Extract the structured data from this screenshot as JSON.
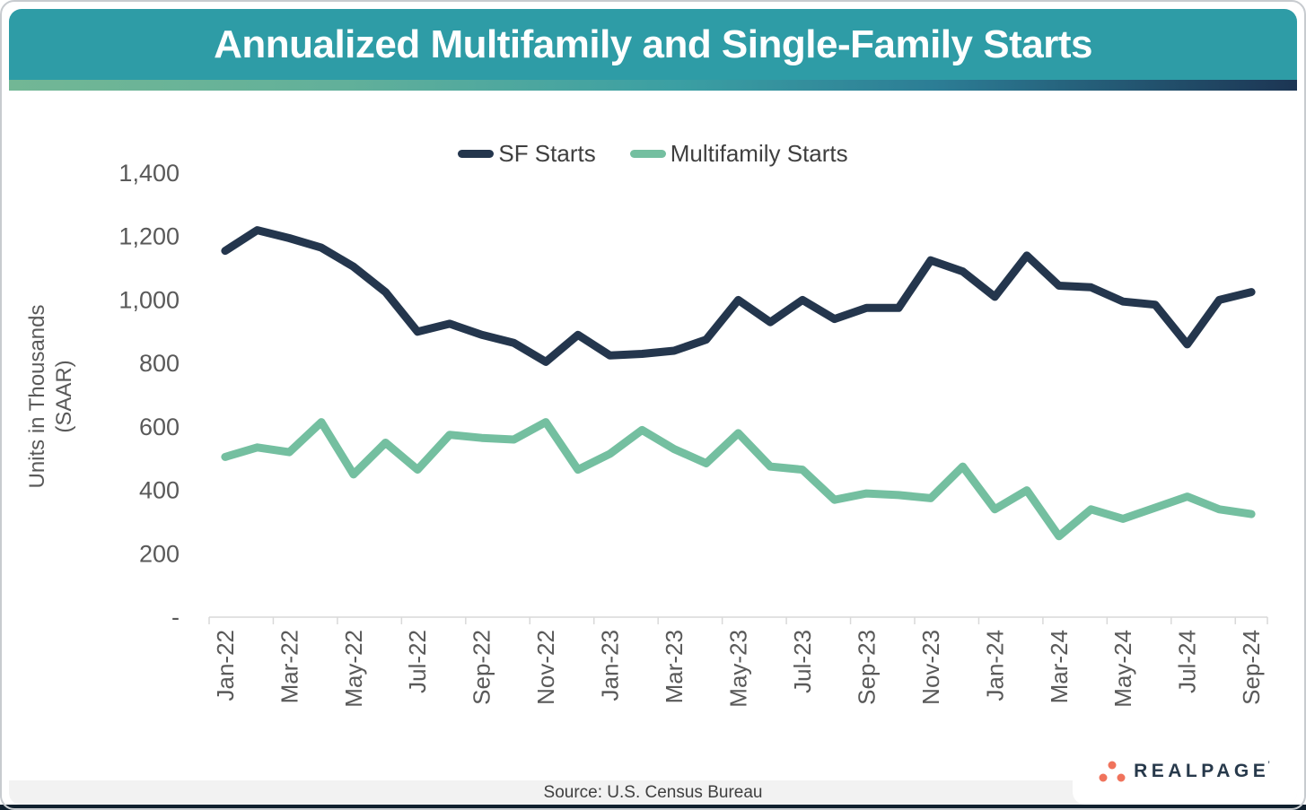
{
  "header": {
    "title": "Annualized Multifamily and Single-Family Starts"
  },
  "legend": {
    "items": [
      "SF Starts",
      "Multifamily Starts"
    ]
  },
  "footer": {
    "source": "Source: U.S. Census Bureau"
  },
  "logo": {
    "text": "REALPAGE",
    "mark": "’",
    "dots_color": "#F0735C",
    "text_color": "#27394B"
  },
  "colors": {
    "header_teal": "#2E9CA6",
    "sf_navy": "#24364D",
    "mf_green": "#74BFA0",
    "axis_line": "#D9D9D9",
    "tick_text": "#595959",
    "legend_text": "#3F3F3F",
    "source_bg": "#F2F2F2",
    "bottom_bar": "#10202E",
    "gradient_left": "#72B795",
    "gradient_mid": "#3B9FA3",
    "gradient_right": "#1C3553"
  },
  "chart_data": {
    "type": "line",
    "title": "Annualized Multifamily and Single-Family Starts",
    "ylabel_line1": "Units in Thousands",
    "ylabel_line2": "(SAAR)",
    "ylim": [
      0,
      1400
    ],
    "ytick_values": [
      1400,
      1200,
      1000,
      800,
      600,
      400,
      200,
      0
    ],
    "ytick_labels": [
      "1,400",
      "1,200",
      "1,000",
      "800",
      "600",
      "400",
      "200",
      "-"
    ],
    "grid": false,
    "legend_position": "top-center",
    "x": [
      "Jan-22",
      "Feb-22",
      "Mar-22",
      "Apr-22",
      "May-22",
      "Jun-22",
      "Jul-22",
      "Aug-22",
      "Sep-22",
      "Oct-22",
      "Nov-22",
      "Dec-22",
      "Jan-23",
      "Feb-23",
      "Mar-23",
      "Apr-23",
      "May-23",
      "Jun-23",
      "Jul-23",
      "Aug-23",
      "Sep-23",
      "Oct-23",
      "Nov-23",
      "Dec-23",
      "Jan-24",
      "Feb-24",
      "Mar-24",
      "Apr-24",
      "May-24",
      "Jun-24",
      "Jul-24",
      "Aug-24",
      "Sep-24"
    ],
    "x_ticks_shown": [
      "Jan-22",
      "Mar-22",
      "May-22",
      "Jul-22",
      "Sep-22",
      "Nov-22",
      "Jan-23",
      "Mar-23",
      "May-23",
      "Jul-23",
      "Sep-23",
      "Nov-23",
      "Jan-24",
      "Mar-24",
      "May-24",
      "Jul-24",
      "Sep-24"
    ],
    "series": [
      {
        "name": "SF Starts",
        "color": "#24364D",
        "values": [
          1155,
          1220,
          1195,
          1165,
          1105,
          1025,
          900,
          925,
          890,
          865,
          805,
          890,
          825,
          830,
          840,
          875,
          1000,
          930,
          1000,
          940,
          975,
          975,
          1125,
          1090,
          1010,
          1140,
          1045,
          1040,
          995,
          985,
          860,
          1000,
          1025
        ]
      },
      {
        "name": "Multifamily Starts",
        "color": "#74BFA0",
        "values": [
          505,
          535,
          520,
          615,
          450,
          550,
          465,
          575,
          565,
          560,
          615,
          465,
          515,
          590,
          530,
          485,
          580,
          475,
          465,
          370,
          390,
          385,
          375,
          475,
          340,
          400,
          255,
          340,
          310,
          345,
          380,
          340,
          325
        ]
      }
    ]
  }
}
